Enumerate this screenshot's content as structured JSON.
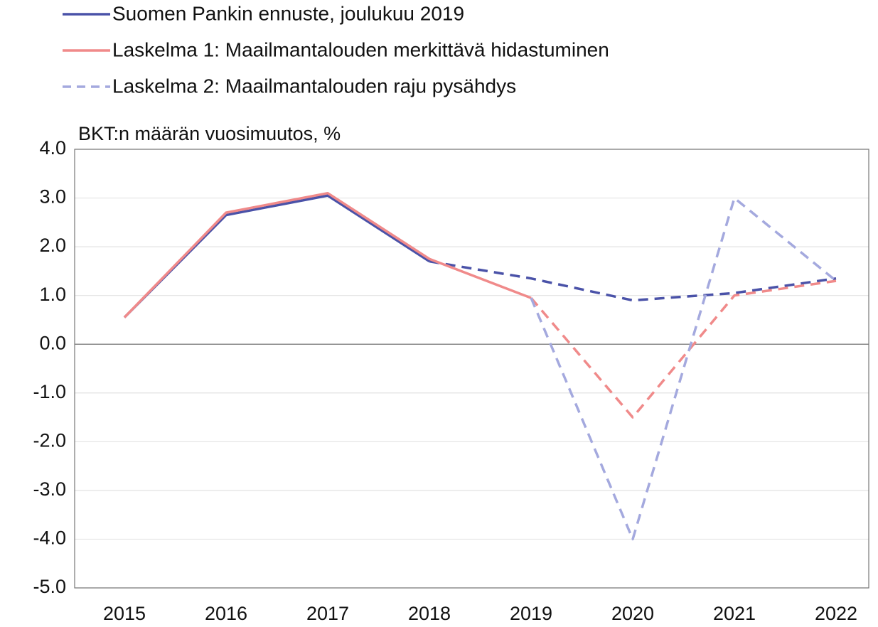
{
  "chart_data": {
    "type": "line",
    "axis_title": "BKT:n määrän vuosimuutos, %",
    "categories": [
      "2015",
      "2016",
      "2017",
      "2018",
      "2019",
      "2020",
      "2021",
      "2022"
    ],
    "series": [
      {
        "name": "Suomen Pankin ennuste, joulukuu 2019",
        "color": "#4a52a8",
        "dashed_from": "2018",
        "values": [
          0.55,
          2.65,
          3.05,
          1.7,
          1.35,
          0.9,
          1.05,
          1.35
        ]
      },
      {
        "name": "Laskelma 1: Maailmantalouden merkittävä hidastuminen",
        "color": "#f08a8a",
        "dashed_from": "2019",
        "values": [
          0.55,
          2.7,
          3.1,
          1.75,
          0.95,
          -1.5,
          1.0,
          1.3
        ]
      },
      {
        "name": "Laskelma 2: Maailmantalouden raju pysähdys",
        "color": "#a4a9de",
        "dashed_from": "2019",
        "values": [
          null,
          null,
          null,
          null,
          0.95,
          -4.0,
          3.0,
          1.3
        ]
      }
    ],
    "ylim": [
      -5.0,
      4.0
    ],
    "yticks": [
      {
        "value": 4,
        "label": "4.0"
      },
      {
        "value": 3,
        "label": "3.0"
      },
      {
        "value": 2,
        "label": "2.0"
      },
      {
        "value": 1,
        "label": "1.0"
      },
      {
        "value": 0,
        "label": "0.0"
      },
      {
        "value": -1,
        "label": "-1.0"
      },
      {
        "value": -2,
        "label": "-2.0"
      },
      {
        "value": -3,
        "label": "-3.0"
      },
      {
        "value": -4,
        "label": "-4.0"
      },
      {
        "value": -5,
        "label": "-5.0"
      }
    ],
    "grid": true
  }
}
